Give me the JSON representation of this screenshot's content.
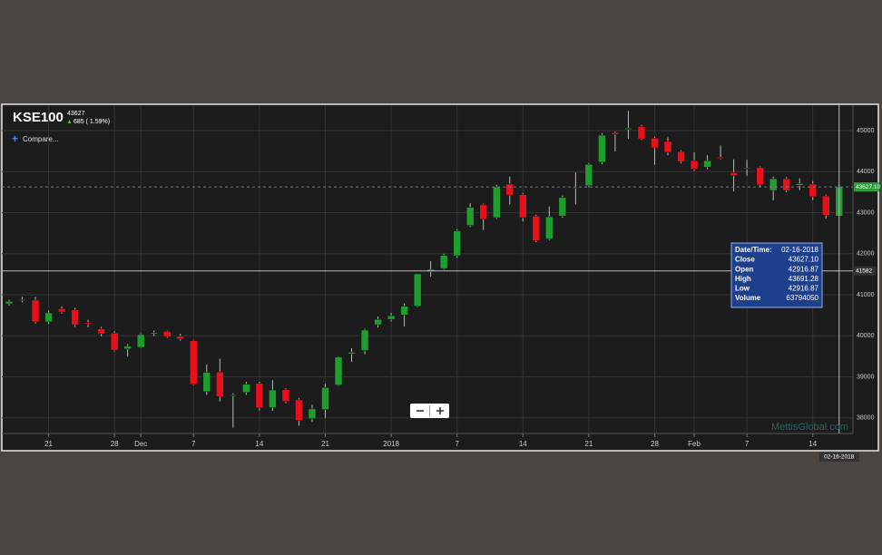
{
  "header": {
    "title": "KSE100",
    "price": "43627",
    "change": "685 ( 1.59%)",
    "compare": "Compare..."
  },
  "watermark": "MettisGlobal.com",
  "tooltip": {
    "rows": [
      [
        "Date/Time:",
        "02-16-2018"
      ],
      [
        "Close",
        "43627.10"
      ],
      [
        "Open",
        "42916.87"
      ],
      [
        "High",
        "43691.28"
      ],
      [
        "Low",
        "42916.87"
      ],
      [
        "Volume",
        "63794050"
      ]
    ]
  },
  "chart_data": {
    "type": "candlestick",
    "categories": [
      null,
      null,
      null,
      "21",
      null,
      null,
      null,
      null,
      "28",
      null,
      "Dec",
      null,
      null,
      null,
      "7",
      null,
      null,
      null,
      null,
      "14",
      null,
      null,
      null,
      null,
      "21",
      null,
      null,
      null,
      null,
      "2018",
      null,
      null,
      null,
      null,
      "7",
      null,
      null,
      null,
      null,
      "14",
      null,
      null,
      null,
      null,
      "21",
      null,
      null,
      null,
      null,
      "28",
      null,
      null,
      "Feb",
      null,
      null,
      null,
      "7",
      null,
      null,
      null,
      null,
      "14",
      null,
      null
    ],
    "open": [
      40780,
      40860,
      40870,
      40340,
      40660,
      40630,
      40320,
      40170,
      40070,
      39680,
      39720,
      40050,
      40110,
      39990,
      39880,
      38640,
      39120,
      38540,
      38620,
      38840,
      38250,
      38690,
      38440,
      37980,
      38200,
      38800,
      39560,
      39640,
      40270,
      40400,
      40510,
      40720,
      41560,
      41640,
      41950,
      42690,
      43190,
      42880,
      43700,
      43440,
      42920,
      42360,
      42920,
      43600,
      43660,
      44230,
      44950,
      45030,
      45100,
      44820,
      44740,
      44490,
      44270,
      44110,
      44350,
      43980,
      44070,
      44100,
      43540,
      43830,
      43670,
      43700,
      43410,
      42916.87
    ],
    "high": [
      40880,
      40950,
      40950,
      40620,
      40720,
      40680,
      40390,
      40220,
      40110,
      39800,
      40060,
      40130,
      40130,
      40050,
      39900,
      39300,
      39440,
      38600,
      38880,
      38880,
      38920,
      38720,
      38480,
      38320,
      38830,
      39500,
      39700,
      40170,
      40470,
      40560,
      40790,
      41520,
      41820,
      42000,
      42600,
      43230,
      43220,
      43680,
      43880,
      43480,
      42950,
      43150,
      43420,
      43980,
      44210,
      44940,
      44980,
      45480,
      45140,
      44850,
      44840,
      44520,
      44470,
      44400,
      44640,
      44300,
      44290,
      44130,
      43880,
      43870,
      43840,
      43770,
      43440,
      43691.28
    ],
    "low": [
      40740,
      40820,
      40300,
      40290,
      40540,
      40220,
      40210,
      39990,
      39620,
      39500,
      39700,
      39990,
      39950,
      39880,
      38800,
      38560,
      38400,
      37760,
      38560,
      38180,
      38170,
      38360,
      37810,
      37900,
      38000,
      38780,
      39360,
      39550,
      40200,
      40350,
      40230,
      40700,
      41440,
      41610,
      41900,
      42650,
      42580,
      42850,
      43200,
      42790,
      42280,
      42330,
      42880,
      43200,
      43620,
      44180,
      44490,
      44800,
      44770,
      44170,
      44400,
      44200,
      44020,
      44060,
      44300,
      43520,
      43900,
      43640,
      43300,
      43500,
      43550,
      43310,
      42860,
      42916.87
    ],
    "close": [
      40840,
      40880,
      40340,
      40560,
      40580,
      40270,
      40290,
      40050,
      39650,
      39750,
      40030,
      40080,
      39980,
      39920,
      38820,
      39110,
      38520,
      38560,
      38820,
      38240,
      38680,
      38400,
      37940,
      38220,
      38740,
      39480,
      39600,
      40140,
      40400,
      40490,
      40720,
      41510,
      41620,
      41960,
      42560,
      43130,
      42840,
      43630,
      43430,
      42880,
      42320,
      42900,
      43370,
      43620,
      44180,
      44890,
      44910,
      45060,
      44800,
      44580,
      44470,
      44240,
      44060,
      44270,
      44320,
      43900,
      44090,
      43680,
      43830,
      43540,
      43710,
      43390,
      42940,
      43627.1
    ],
    "up_color": "#1e9e2e",
    "down_color": "#e8111b",
    "ylim": [
      37620,
      45620
    ],
    "yticks": [
      38000,
      39000,
      40000,
      41000,
      42000,
      43000,
      44000,
      45000
    ],
    "grid": true,
    "crosshair": {
      "y": 41582,
      "date": "02-16-2018"
    }
  }
}
